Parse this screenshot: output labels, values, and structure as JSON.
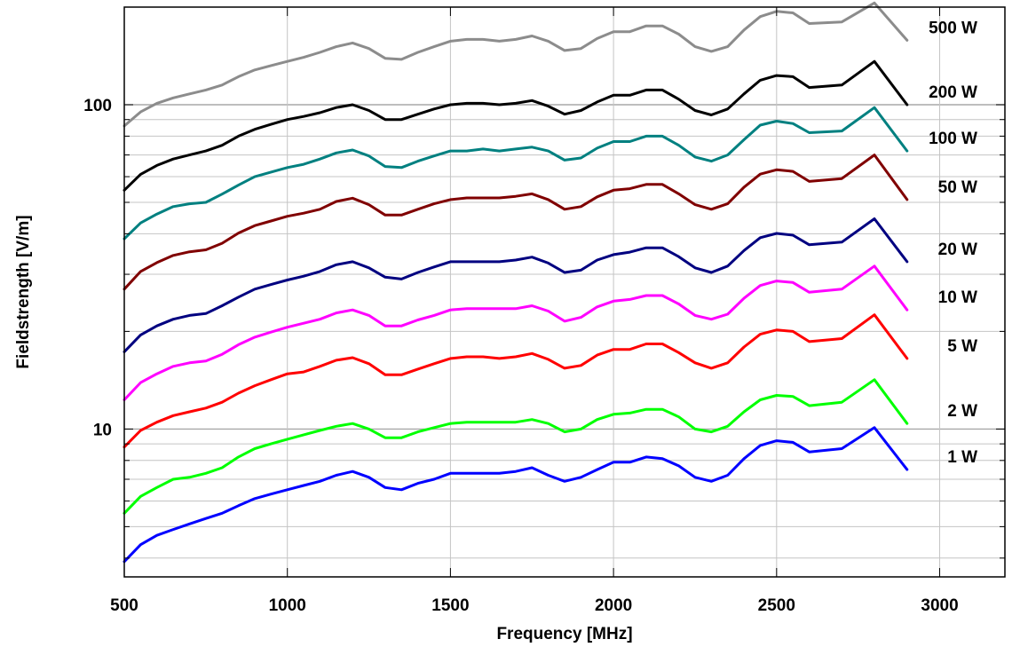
{
  "chart_data": {
    "type": "line",
    "title": "",
    "xlabel": "Frequency [MHz]",
    "ylabel": "Fieldstrength [V/m]",
    "xlim": [
      500,
      3200
    ],
    "ylim": [
      3.5,
      200
    ],
    "yscale": "log",
    "grid": true,
    "x_ticks": [
      500,
      1000,
      1500,
      2000,
      2500,
      3000
    ],
    "x_tick_labels": [
      "500",
      "1000",
      "1500",
      "2000",
      "2500",
      "3000"
    ],
    "y_ticks": [
      10,
      100
    ],
    "y_tick_labels": [
      "10",
      "100"
    ],
    "legend_placement": "series labels at right end of lines",
    "x": [
      500,
      550,
      600,
      650,
      700,
      750,
      800,
      850,
      900,
      950,
      1000,
      1050,
      1100,
      1150,
      1200,
      1250,
      1300,
      1350,
      1400,
      1450,
      1500,
      1550,
      1600,
      1650,
      1700,
      1750,
      1800,
      1850,
      1900,
      1950,
      2000,
      2050,
      2100,
      2150,
      2200,
      2250,
      2300,
      2350,
      2400,
      2450,
      2500,
      2550,
      2600,
      2700,
      2800,
      2900
    ],
    "series": [
      {
        "name": "1 W",
        "color": "#0000ff",
        "values": [
          3.9,
          4.4,
          4.7,
          4.9,
          5.1,
          5.3,
          5.5,
          5.8,
          6.1,
          6.3,
          6.5,
          6.7,
          6.9,
          7.2,
          7.4,
          7.1,
          6.6,
          6.5,
          6.8,
          7.0,
          7.3,
          7.3,
          7.3,
          7.3,
          7.4,
          7.6,
          7.2,
          6.9,
          7.1,
          7.5,
          7.9,
          7.9,
          8.2,
          8.1,
          7.7,
          7.1,
          6.9,
          7.2,
          8.1,
          8.9,
          9.2,
          9.1,
          8.5,
          8.7,
          10.1,
          7.5
        ]
      },
      {
        "name": "2 W",
        "color": "#00ff00",
        "values": [
          5.5,
          6.2,
          6.6,
          7.0,
          7.1,
          7.3,
          7.6,
          8.2,
          8.7,
          9.0,
          9.3,
          9.6,
          9.9,
          10.2,
          10.4,
          10.0,
          9.4,
          9.4,
          9.8,
          10.1,
          10.4,
          10.5,
          10.5,
          10.5,
          10.5,
          10.7,
          10.4,
          9.8,
          10.0,
          10.7,
          11.1,
          11.2,
          11.5,
          11.5,
          10.9,
          10.0,
          9.8,
          10.2,
          11.3,
          12.3,
          12.7,
          12.6,
          11.8,
          12.1,
          14.2,
          10.4
        ]
      },
      {
        "name": "5 W",
        "color": "#ff0000",
        "values": [
          8.8,
          9.9,
          10.5,
          11.0,
          11.3,
          11.6,
          12.1,
          12.9,
          13.6,
          14.2,
          14.8,
          15.0,
          15.6,
          16.3,
          16.6,
          15.9,
          14.7,
          14.7,
          15.3,
          15.9,
          16.5,
          16.7,
          16.7,
          16.5,
          16.7,
          17.1,
          16.4,
          15.4,
          15.7,
          16.9,
          17.6,
          17.6,
          18.3,
          18.3,
          17.2,
          16.0,
          15.4,
          16.0,
          17.9,
          19.6,
          20.2,
          20.0,
          18.6,
          19.0,
          22.5,
          16.5
        ]
      },
      {
        "name": "10 W",
        "color": "#ff00ff",
        "values": [
          12.3,
          13.9,
          14.8,
          15.6,
          16.0,
          16.2,
          17.0,
          18.2,
          19.2,
          19.9,
          20.6,
          21.2,
          21.8,
          22.8,
          23.3,
          22.4,
          20.8,
          20.8,
          21.7,
          22.4,
          23.3,
          23.5,
          23.5,
          23.5,
          23.5,
          24.0,
          23.1,
          21.5,
          22.1,
          23.8,
          24.8,
          25.1,
          25.8,
          25.8,
          24.3,
          22.4,
          21.8,
          22.6,
          25.3,
          27.7,
          28.6,
          28.3,
          26.4,
          27.0,
          31.8,
          23.3
        ]
      },
      {
        "name": "20 W",
        "color": "#000080",
        "values": [
          17.3,
          19.5,
          20.8,
          21.8,
          22.4,
          22.7,
          24.0,
          25.5,
          27.0,
          27.9,
          28.8,
          29.6,
          30.6,
          32.1,
          32.8,
          31.4,
          29.4,
          29.0,
          30.4,
          31.6,
          32.8,
          32.8,
          32.8,
          32.8,
          33.2,
          33.9,
          32.5,
          30.4,
          30.9,
          33.2,
          34.5,
          35.1,
          36.2,
          36.2,
          34.0,
          31.4,
          30.4,
          31.8,
          35.5,
          38.9,
          40.1,
          39.6,
          37.0,
          37.7,
          44.5,
          32.8
        ]
      },
      {
        "name": "50 W",
        "color": "#800000",
        "values": [
          27.0,
          30.6,
          32.6,
          34.3,
          35.2,
          35.7,
          37.4,
          40.2,
          42.4,
          43.8,
          45.3,
          46.3,
          47.6,
          50.3,
          51.5,
          49.2,
          45.7,
          45.7,
          47.6,
          49.5,
          51.0,
          51.6,
          51.6,
          51.6,
          52.2,
          53.1,
          51.0,
          47.6,
          48.5,
          52.0,
          54.5,
          55.1,
          56.8,
          56.8,
          53.1,
          49.2,
          47.6,
          49.5,
          55.7,
          61.1,
          63.0,
          62.3,
          58.0,
          59.2,
          70.0,
          51.0
        ]
      },
      {
        "name": "100 W",
        "color": "#008080",
        "values": [
          38.6,
          43.2,
          46.0,
          48.5,
          49.5,
          50.0,
          53.0,
          56.5,
          60.0,
          62.0,
          64.0,
          65.5,
          68.0,
          71.0,
          72.5,
          69.5,
          64.5,
          64.0,
          67.0,
          69.5,
          72.0,
          72.0,
          73.0,
          72.0,
          73.0,
          74.0,
          72.0,
          67.5,
          68.5,
          73.5,
          77.0,
          77.0,
          80.0,
          80.0,
          75.0,
          69.0,
          67.0,
          70.0,
          78.0,
          86.5,
          89.0,
          87.5,
          82.0,
          83.0,
          98.0,
          72.0
        ]
      },
      {
        "name": "200 W",
        "color": "#000000",
        "values": [
          54.5,
          61.0,
          65.0,
          68.0,
          70.0,
          72.0,
          75.0,
          80.0,
          84.0,
          87.0,
          90.0,
          92.0,
          94.5,
          98.0,
          100.0,
          96.0,
          90.0,
          90.0,
          93.5,
          97.0,
          100.0,
          101.0,
          101.0,
          100.0,
          101.0,
          103.0,
          99.0,
          93.5,
          96.0,
          102.0,
          107.0,
          107.0,
          111.0,
          111.0,
          104.0,
          96.0,
          93.0,
          97.0,
          108.0,
          119.0,
          123.0,
          122.0,
          113.0,
          115.0,
          136.0,
          100.0
        ]
      },
      {
        "name": "500 W",
        "color": "#8c8c8c",
        "values": [
          86.0,
          95.0,
          101.0,
          105.0,
          108.0,
          111.0,
          115.0,
          122.0,
          128.0,
          132.0,
          136.0,
          140.0,
          145.0,
          151.0,
          155.0,
          149.0,
          139.0,
          138.0,
          145.0,
          151.0,
          157.0,
          159.0,
          159.0,
          157.0,
          159.0,
          163.0,
          157.0,
          147.0,
          149.0,
          160.0,
          168.0,
          168.0,
          175.0,
          175.0,
          165.0,
          151.0,
          146.0,
          151.0,
          170.0,
          187.0,
          194.0,
          192.0,
          178.0,
          180.0,
          206.0,
          158.0
        ]
      }
    ]
  }
}
